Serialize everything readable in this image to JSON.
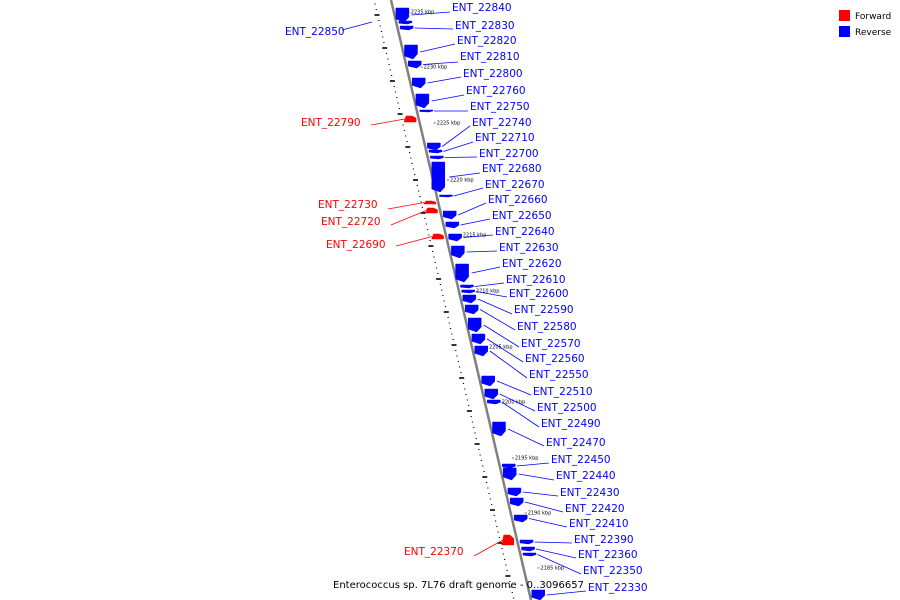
{
  "caption": "Enterococcus sp. 7L76 draft genome - 0..3096657",
  "legend": {
    "items": [
      {
        "label": "Forward",
        "color": "#ff0000"
      },
      {
        "label": "Reverse",
        "color": "#0000ff"
      }
    ]
  },
  "colors": {
    "forward": "#ff0000",
    "reverse": "#0000ff",
    "backbone": "#808080"
  },
  "ticks": [
    {
      "label": "2235 kbp"
    },
    {
      "label": "2230 kbp"
    },
    {
      "label": "2225 kbp"
    },
    {
      "label": "2220 kbp"
    },
    {
      "label": "2215 kbp"
    },
    {
      "label": "2210 kbp"
    },
    {
      "label": "2205 kbp"
    },
    {
      "label": "2200 kbp"
    },
    {
      "label": "2195 kbp"
    },
    {
      "label": "2190 kbp"
    },
    {
      "label": "2185 kbp"
    }
  ],
  "genes": [
    {
      "label": "ENT_22840",
      "strand": "reverse"
    },
    {
      "label": "ENT_22850",
      "strand": "reverse"
    },
    {
      "label": "ENT_22830",
      "strand": "reverse"
    },
    {
      "label": "ENT_22820",
      "strand": "reverse"
    },
    {
      "label": "ENT_22810",
      "strand": "reverse"
    },
    {
      "label": "ENT_22800",
      "strand": "reverse"
    },
    {
      "label": "ENT_22790",
      "strand": "forward"
    },
    {
      "label": "ENT_22760",
      "strand": "reverse"
    },
    {
      "label": "ENT_22750",
      "strand": "reverse"
    },
    {
      "label": "ENT_22740",
      "strand": "reverse"
    },
    {
      "label": "ENT_22710",
      "strand": "reverse"
    },
    {
      "label": "ENT_22700",
      "strand": "reverse"
    },
    {
      "label": "ENT_22680",
      "strand": "reverse"
    },
    {
      "label": "ENT_22670",
      "strand": "reverse"
    },
    {
      "label": "ENT_22730",
      "strand": "forward"
    },
    {
      "label": "ENT_22660",
      "strand": "reverse"
    },
    {
      "label": "ENT_22720",
      "strand": "forward"
    },
    {
      "label": "ENT_22650",
      "strand": "reverse"
    },
    {
      "label": "ENT_22690",
      "strand": "forward"
    },
    {
      "label": "ENT_22640",
      "strand": "reverse"
    },
    {
      "label": "ENT_22630",
      "strand": "reverse"
    },
    {
      "label": "ENT_22620",
      "strand": "reverse"
    },
    {
      "label": "ENT_22610",
      "strand": "reverse"
    },
    {
      "label": "ENT_22600",
      "strand": "reverse"
    },
    {
      "label": "ENT_22590",
      "strand": "reverse"
    },
    {
      "label": "ENT_22580",
      "strand": "reverse"
    },
    {
      "label": "ENT_22570",
      "strand": "reverse"
    },
    {
      "label": "ENT_22560",
      "strand": "reverse"
    },
    {
      "label": "ENT_22550",
      "strand": "reverse"
    },
    {
      "label": "ENT_22510",
      "strand": "reverse"
    },
    {
      "label": "ENT_22500",
      "strand": "reverse"
    },
    {
      "label": "ENT_22490",
      "strand": "reverse"
    },
    {
      "label": "ENT_22470",
      "strand": "reverse"
    },
    {
      "label": "ENT_22450",
      "strand": "reverse"
    },
    {
      "label": "ENT_22440",
      "strand": "reverse"
    },
    {
      "label": "ENT_22430",
      "strand": "reverse"
    },
    {
      "label": "ENT_22420",
      "strand": "reverse"
    },
    {
      "label": "ENT_22410",
      "strand": "reverse"
    },
    {
      "label": "ENT_22390",
      "strand": "reverse"
    },
    {
      "label": "ENT_22370",
      "strand": "forward"
    },
    {
      "label": "ENT_22360",
      "strand": "reverse"
    },
    {
      "label": "ENT_22350",
      "strand": "reverse"
    },
    {
      "label": "ENT_22330",
      "strand": "reverse"
    }
  ]
}
